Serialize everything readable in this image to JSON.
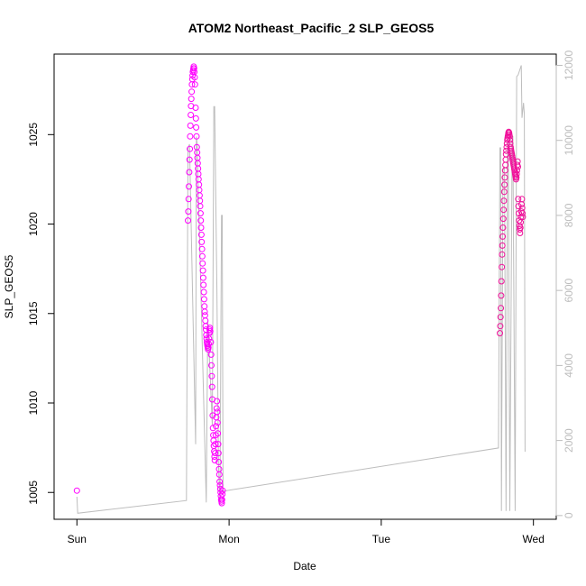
{
  "chart_data": {
    "type": "scatter",
    "title": "ATOM2 Northeast_Pacific_2 SLP_GEOS5",
    "xlabel": "Date",
    "ylabel": "SLP_GEOS5",
    "x_ticks": [
      "Sun",
      "Mon",
      "Tue",
      "Wed"
    ],
    "y_ticks": [
      "1005",
      "1010",
      "1015",
      "1020",
      "1025"
    ],
    "y2_ticks": [
      "0",
      "2000",
      "4000",
      "6000",
      "8000",
      "10000",
      "12000"
    ],
    "xlim_days": [
      -0.15,
      3.15
    ],
    "ylim": [
      1003.5,
      1029.5
    ],
    "y2lim": [
      -100,
      12300
    ],
    "grid": false,
    "series": [
      {
        "kind": "points",
        "color": "#ff00ff",
        "points": [
          [
            0.0,
            1005.1
          ],
          [
            0.73,
            1020.2
          ],
          [
            0.732,
            1020.7
          ],
          [
            0.734,
            1021.4
          ],
          [
            0.736,
            1022.1
          ],
          [
            0.738,
            1022.9
          ],
          [
            0.74,
            1023.6
          ],
          [
            0.742,
            1024.2
          ],
          [
            0.744,
            1024.9
          ],
          [
            0.746,
            1025.5
          ],
          [
            0.748,
            1026.1
          ],
          [
            0.75,
            1026.6
          ],
          [
            0.752,
            1027.0
          ],
          [
            0.754,
            1027.4
          ],
          [
            0.756,
            1027.8
          ],
          [
            0.758,
            1028.1
          ],
          [
            0.76,
            1028.3
          ],
          [
            0.762,
            1028.5
          ],
          [
            0.764,
            1028.6
          ],
          [
            0.766,
            1028.7
          ],
          [
            0.768,
            1028.8
          ],
          [
            0.77,
            1028.7
          ],
          [
            0.772,
            1028.5
          ],
          [
            0.774,
            1028.2
          ],
          [
            0.776,
            1027.8
          ],
          [
            0.78,
            1026.5
          ],
          [
            0.782,
            1025.9
          ],
          [
            0.784,
            1025.4
          ],
          [
            0.786,
            1024.9
          ],
          [
            0.788,
            1024.3
          ],
          [
            0.79,
            1024.0
          ],
          [
            0.792,
            1023.7
          ],
          [
            0.794,
            1023.4
          ],
          [
            0.796,
            1023.1
          ],
          [
            0.798,
            1022.8
          ],
          [
            0.8,
            1022.5
          ],
          [
            0.802,
            1022.2
          ],
          [
            0.804,
            1021.9
          ],
          [
            0.806,
            1021.6
          ],
          [
            0.808,
            1021.3
          ],
          [
            0.81,
            1021.0
          ],
          [
            0.812,
            1020.6
          ],
          [
            0.814,
            1020.2
          ],
          [
            0.816,
            1019.8
          ],
          [
            0.818,
            1019.4
          ],
          [
            0.82,
            1019.0
          ],
          [
            0.822,
            1018.6
          ],
          [
            0.824,
            1018.2
          ],
          [
            0.826,
            1017.8
          ],
          [
            0.828,
            1017.4
          ],
          [
            0.83,
            1017.0
          ],
          [
            0.832,
            1016.6
          ],
          [
            0.834,
            1016.2
          ],
          [
            0.836,
            1015.8
          ],
          [
            0.838,
            1015.4
          ],
          [
            0.84,
            1015.1
          ],
          [
            0.842,
            1014.9
          ],
          [
            0.844,
            1014.6
          ],
          [
            0.846,
            1014.3
          ],
          [
            0.848,
            1014.1
          ],
          [
            0.85,
            1013.8
          ],
          [
            0.852,
            1013.6
          ],
          [
            0.854,
            1013.4
          ],
          [
            0.856,
            1013.3
          ],
          [
            0.858,
            1013.2
          ],
          [
            0.86,
            1013.1
          ],
          [
            0.862,
            1013.0
          ],
          [
            0.864,
            1013.1
          ],
          [
            0.866,
            1013.3
          ],
          [
            0.868,
            1013.6
          ],
          [
            0.87,
            1013.9
          ],
          [
            0.872,
            1014.1
          ],
          [
            0.874,
            1014.2
          ],
          [
            0.876,
            1014.0
          ],
          [
            0.88,
            1013.4
          ],
          [
            0.882,
            1012.7
          ],
          [
            0.884,
            1012.1
          ],
          [
            0.886,
            1011.5
          ],
          [
            0.888,
            1010.9
          ],
          [
            0.89,
            1010.2
          ],
          [
            0.892,
            1009.3
          ],
          [
            0.894,
            1008.6
          ],
          [
            0.896,
            1008.2
          ],
          [
            0.898,
            1007.9
          ],
          [
            0.9,
            1007.6
          ],
          [
            0.902,
            1007.3
          ],
          [
            0.904,
            1007.0
          ],
          [
            0.906,
            1006.8
          ],
          [
            0.908,
            1007.2
          ],
          [
            0.91,
            1007.7
          ],
          [
            0.912,
            1008.2
          ],
          [
            0.914,
            1008.7
          ],
          [
            0.916,
            1009.2
          ],
          [
            0.918,
            1009.7
          ],
          [
            0.92,
            1010.1
          ],
          [
            0.922,
            1009.5
          ],
          [
            0.924,
            1008.9
          ],
          [
            0.926,
            1008.3
          ],
          [
            0.928,
            1007.7
          ],
          [
            0.93,
            1007.2
          ],
          [
            0.932,
            1006.7
          ],
          [
            0.934,
            1006.3
          ],
          [
            0.936,
            1006.0
          ],
          [
            0.938,
            1005.6
          ],
          [
            0.94,
            1005.4
          ],
          [
            0.942,
            1005.2
          ],
          [
            0.944,
            1005.0
          ],
          [
            0.946,
            1004.8
          ],
          [
            0.948,
            1004.6
          ],
          [
            0.95,
            1004.5
          ],
          [
            0.952,
            1004.4
          ],
          [
            0.954,
            1004.6
          ],
          [
            0.956,
            1004.9
          ],
          [
            0.958,
            1005.1
          ],
          [
            2.78,
            1013.9
          ],
          [
            2.782,
            1014.3
          ],
          [
            2.784,
            1014.8
          ],
          [
            2.786,
            1015.3
          ],
          [
            2.788,
            1016.0
          ],
          [
            2.79,
            1016.8
          ],
          [
            2.792,
            1017.6
          ],
          [
            2.794,
            1018.3
          ],
          [
            2.796,
            1018.8
          ],
          [
            2.798,
            1019.3
          ],
          [
            2.8,
            1019.8
          ],
          [
            2.802,
            1020.3
          ],
          [
            2.804,
            1020.8
          ],
          [
            2.806,
            1021.3
          ],
          [
            2.808,
            1021.8
          ],
          [
            2.81,
            1022.2
          ],
          [
            2.812,
            1022.6
          ],
          [
            2.814,
            1023.0
          ],
          [
            2.816,
            1023.3
          ],
          [
            2.818,
            1023.6
          ],
          [
            2.82,
            1023.9
          ],
          [
            2.822,
            1024.1
          ],
          [
            2.824,
            1024.3
          ],
          [
            2.826,
            1024.5
          ],
          [
            2.828,
            1024.7
          ],
          [
            2.83,
            1024.8
          ],
          [
            2.832,
            1024.9
          ],
          [
            2.834,
            1025.0
          ],
          [
            2.836,
            1025.1
          ],
          [
            2.838,
            1025.15
          ],
          [
            2.84,
            1025.1
          ],
          [
            2.842,
            1025.0
          ],
          [
            2.844,
            1024.9
          ],
          [
            2.846,
            1024.7
          ],
          [
            2.848,
            1024.5
          ],
          [
            2.85,
            1024.3
          ],
          [
            2.852,
            1024.2
          ],
          [
            2.854,
            1024.1
          ],
          [
            2.856,
            1024.0
          ],
          [
            2.858,
            1023.9
          ],
          [
            2.86,
            1023.8
          ],
          [
            2.862,
            1023.7
          ],
          [
            2.864,
            1023.6
          ],
          [
            2.866,
            1023.5
          ],
          [
            2.868,
            1023.4
          ],
          [
            2.87,
            1023.3
          ],
          [
            2.872,
            1023.2
          ],
          [
            2.874,
            1023.1
          ],
          [
            2.876,
            1023.0
          ],
          [
            2.878,
            1022.9
          ],
          [
            2.88,
            1022.8
          ],
          [
            2.882,
            1022.7
          ],
          [
            2.884,
            1022.6
          ],
          [
            2.886,
            1022.5
          ],
          [
            2.888,
            1022.6
          ],
          [
            2.89,
            1022.8
          ],
          [
            2.892,
            1023.0
          ],
          [
            2.894,
            1023.3
          ],
          [
            2.896,
            1023.5
          ],
          [
            2.898,
            1023.2
          ],
          [
            2.9,
            1021.4
          ],
          [
            2.902,
            1021.0
          ],
          [
            2.904,
            1020.6
          ],
          [
            2.906,
            1020.2
          ],
          [
            2.908,
            1019.9
          ],
          [
            2.91,
            1019.7
          ],
          [
            2.912,
            1019.5
          ],
          [
            2.914,
            1019.8
          ],
          [
            2.916,
            1020.1
          ],
          [
            2.918,
            1020.4
          ],
          [
            2.92,
            1020.7
          ],
          [
            2.922,
            1021.1
          ],
          [
            2.924,
            1021.4
          ],
          [
            2.926,
            1020.9
          ],
          [
            2.928,
            1020.6
          ],
          [
            2.93,
            1020.4
          ]
        ]
      },
      {
        "kind": "line",
        "axis": "right",
        "color": "#bdbdbd",
        "points": [
          [
            0.0,
            500
          ],
          [
            0.005,
            60
          ],
          [
            0.72,
            400
          ],
          [
            0.73,
            9800
          ],
          [
            0.74,
            9900
          ],
          [
            0.78,
            1900
          ],
          [
            0.785,
            10100
          ],
          [
            0.79,
            9900
          ],
          [
            0.85,
            350
          ],
          [
            0.86,
            5200
          ],
          [
            0.89,
            2400
          ],
          [
            0.9,
            10900
          ],
          [
            0.905,
            10900
          ],
          [
            0.92,
            6000
          ],
          [
            0.93,
            1400
          ],
          [
            0.94,
            300
          ],
          [
            0.95,
            8000
          ],
          [
            0.955,
            8000
          ],
          [
            0.96,
            650
          ],
          [
            2.77,
            1800
          ],
          [
            2.78,
            9800
          ],
          [
            2.785,
            9800
          ],
          [
            2.79,
            120
          ],
          [
            2.8,
            9200
          ],
          [
            2.81,
            9300
          ],
          [
            2.82,
            120
          ],
          [
            2.83,
            10000
          ],
          [
            2.835,
            10000
          ],
          [
            2.845,
            120
          ],
          [
            2.86,
            10100
          ],
          [
            2.865,
            10100
          ],
          [
            2.88,
            120
          ],
          [
            2.89,
            11700
          ],
          [
            2.9,
            11750
          ],
          [
            2.92,
            12000
          ],
          [
            2.925,
            10600
          ],
          [
            2.935,
            11000
          ],
          [
            2.94,
            10700
          ],
          [
            2.945,
            1700
          ]
        ]
      }
    ]
  }
}
